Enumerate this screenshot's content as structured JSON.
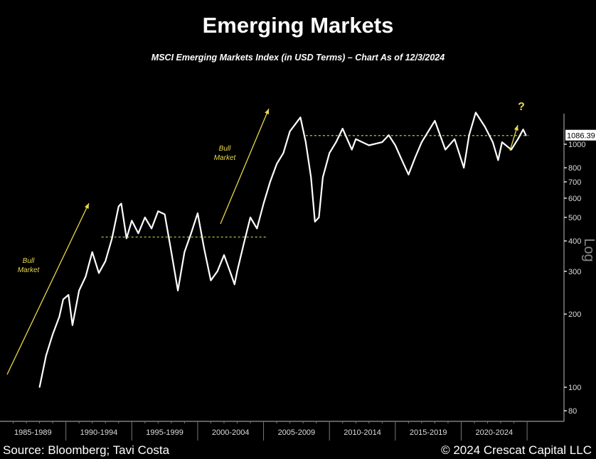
{
  "chart_data": {
    "type": "line",
    "title": "Emerging Markets",
    "subtitle": "MSCI Emerging Markets Index (in USD Terms) – Chart As of 12/3/2024",
    "yscale": "log",
    "ylabel": "Log",
    "ylim": [
      72,
      1550
    ],
    "xlim": [
      1985,
      2027.8
    ],
    "yticks": [
      80,
      100,
      200,
      300,
      400,
      500,
      600,
      700,
      800,
      1000
    ],
    "ytick_labels": [
      "80",
      "100",
      "200",
      "300",
      "400",
      "500",
      "600",
      "700",
      "800",
      "1000"
    ],
    "xcategories": [
      "1985-1989",
      "1990-1994",
      "1995-1999",
      "2000-2004",
      "2005-2009",
      "2010-2014",
      "2015-2019",
      "2020-2024"
    ],
    "last_value_label": "1086.39",
    "series": [
      {
        "name": "MSCI Emerging Markets Index",
        "color": "#ffffff",
        "x": [
          1988.0,
          1988.5,
          1989.0,
          1989.5,
          1989.8,
          1990.2,
          1990.5,
          1991.0,
          1991.5,
          1992.0,
          1992.5,
          1993.0,
          1993.5,
          1994.0,
          1994.2,
          1994.6,
          1995.0,
          1995.5,
          1996.0,
          1996.5,
          1997.0,
          1997.5,
          1998.0,
          1998.5,
          1999.0,
          1999.5,
          2000.0,
          2000.5,
          2001.0,
          2001.5,
          2002.0,
          2002.5,
          2002.8,
          2003.0,
          2003.5,
          2004.0,
          2004.5,
          2005.0,
          2005.5,
          2006.0,
          2006.5,
          2007.0,
          2007.8,
          2008.2,
          2008.6,
          2008.9,
          2009.2,
          2009.5,
          2010.0,
          2010.5,
          2011.0,
          2011.7,
          2012.0,
          2013.0,
          2014.0,
          2014.5,
          2015.0,
          2015.5,
          2016.0,
          2016.5,
          2017.0,
          2018.0,
          2018.8,
          2019.5,
          2020.2,
          2020.6,
          2021.1,
          2021.8,
          2022.4,
          2022.8,
          2023.1,
          2023.8,
          2024.3,
          2024.7,
          2024.92
        ],
        "y": [
          100,
          135,
          165,
          195,
          230,
          240,
          180,
          250,
          285,
          360,
          295,
          330,
          410,
          555,
          570,
          410,
          485,
          430,
          500,
          450,
          530,
          515,
          360,
          250,
          360,
          430,
          520,
          370,
          275,
          300,
          350,
          295,
          265,
          300,
          390,
          500,
          450,
          570,
          700,
          830,
          920,
          1130,
          1290,
          1020,
          730,
          480,
          500,
          730,
          920,
          1020,
          1160,
          950,
          1050,
          990,
          1020,
          1090,
          990,
          860,
          750,
          880,
          1020,
          1250,
          950,
          1050,
          800,
          1090,
          1350,
          1180,
          1020,
          860,
          1020,
          950,
          1050,
          1150,
          1086.39
        ]
      }
    ],
    "reference_lines": [
      {
        "value": 415,
        "x_from": 1992.7,
        "x_to": 2005.3,
        "color": "#9aa83a"
      },
      {
        "value": 1086.39,
        "x_from": 2008.2,
        "x_to": 2025.1,
        "color": "#9aa83a"
      }
    ],
    "annotations": [
      {
        "text": "Bull Market",
        "line1": "Bull",
        "line2": "Market",
        "color": "#e8d84a"
      },
      {
        "text": "Bull Market",
        "line1": "Bull",
        "line2": "Market",
        "color": "#e8d84a"
      },
      {
        "text": "?",
        "color": "#e8d84a"
      }
    ]
  },
  "footer": {
    "source": "Source: Bloomberg; Tavi Costa",
    "copyright": "© 2024 Crescat Capital LLC"
  }
}
